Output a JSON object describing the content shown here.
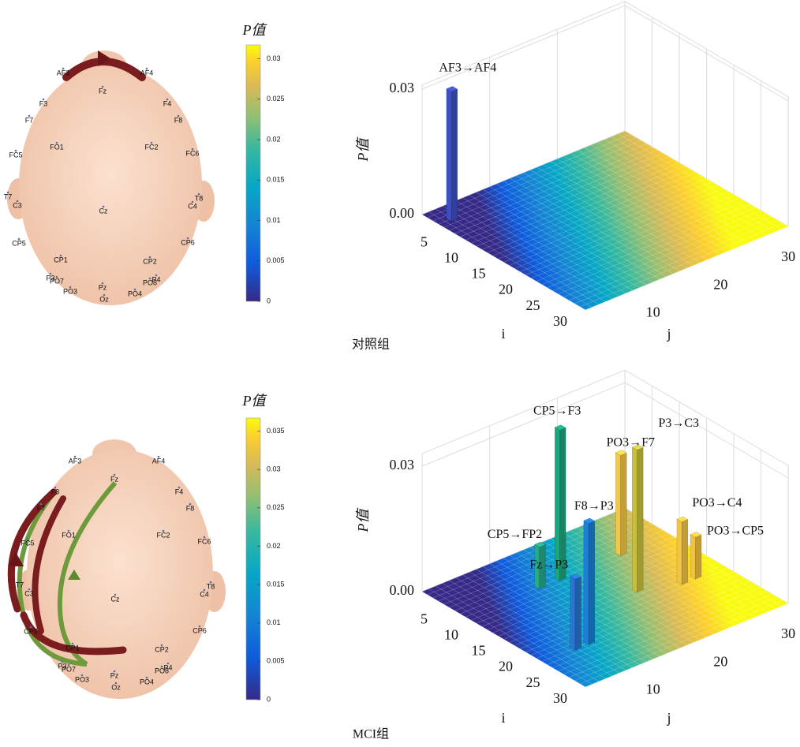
{
  "chart_data": [
    {
      "type": "bar3d",
      "caption": "对照组",
      "ilabel": "i",
      "jlabel": "j",
      "zlabel": "P值",
      "ilim": [
        0,
        30
      ],
      "iticks": [
        5,
        10,
        15,
        20,
        25,
        30
      ],
      "jlim": [
        0,
        30
      ],
      "jticks": [
        10,
        20,
        30
      ],
      "zlim": [
        0,
        0.031
      ],
      "zticks": [
        {
          "value": 0,
          "label": "0.00"
        },
        {
          "value": 0.03,
          "label": "0.03"
        }
      ],
      "bars": [
        {
          "label": "AF3→AF4",
          "i": 3,
          "j": 2,
          "value": 0.031,
          "color": "#3d4fc4"
        }
      ],
      "colorbar": {
        "title": "P值",
        "clim": [
          0,
          0.0317
        ],
        "ticks": [
          0,
          0.005,
          0.01,
          0.015,
          0.02,
          0.025,
          0.03
        ]
      }
    },
    {
      "type": "bar3d",
      "caption": "MCI组",
      "ilabel": "i",
      "jlabel": "j",
      "zlabel": "P值",
      "ilim": [
        0,
        30
      ],
      "iticks": [
        5,
        10,
        15,
        20,
        25,
        30
      ],
      "jlim": [
        0,
        30
      ],
      "jticks": [
        10,
        20,
        30
      ],
      "zlim": [
        0,
        0.033
      ],
      "zticks": [
        {
          "value": 0,
          "label": "0.00"
        },
        {
          "value": 0.03,
          "label": "0.03"
        }
      ],
      "bars": [
        {
          "label": "CP5→F3",
          "i": 8,
          "j": 14,
          "value": 0.036,
          "color": "#1ea57e"
        },
        {
          "label": "CP5→FP2",
          "i": 8,
          "j": 11,
          "value": 0.01,
          "color": "#27a98a"
        },
        {
          "label": "Fz→P3",
          "i": 22,
          "j": 5,
          "value": 0.017,
          "color": "#2a74d2"
        },
        {
          "label": "F8→P3",
          "i": 22,
          "j": 7,
          "value": 0.029,
          "color": "#1c7fd8"
        },
        {
          "label": "PO3→F7",
          "i": 8,
          "j": 23,
          "value": 0.024,
          "color": "#f4c744"
        },
        {
          "label": "P3→C3",
          "i": 16,
          "j": 19,
          "value": 0.034,
          "color": "#c9bf3e"
        },
        {
          "label": "PO3→C4",
          "i": 18,
          "j": 24,
          "value": 0.015,
          "color": "#f2c443"
        },
        {
          "label": "PO3→CP5",
          "i": 18,
          "j": 26,
          "value": 0.01,
          "color": "#f0c241"
        }
      ],
      "colorbar": {
        "title": "P值",
        "clim": [
          0,
          0.0367
        ],
        "ticks": [
          0,
          0.005,
          0.01,
          0.015,
          0.02,
          0.025,
          0.03,
          0.035
        ]
      }
    }
  ],
  "heads": [
    {
      "electrodes": [
        "AF3",
        "AF4",
        "Fz",
        "F3",
        "F4",
        "F7",
        "F8",
        "FO1",
        "FC2",
        "FC5",
        "FC6",
        "T7",
        "T8",
        "C3",
        "Cz",
        "C4",
        "CP5",
        "CP6",
        "CP1",
        "CP2",
        "P3",
        "P4",
        "PO7",
        "PO8",
        "PO3",
        "PO4",
        "Pz",
        "Oz"
      ]
    },
    {
      "electrodes": [
        "AF3",
        "AF4",
        "Fz",
        "F3",
        "F4",
        "F7",
        "F8",
        "FO1",
        "FC2",
        "FC5",
        "FC6",
        "T7",
        "T8",
        "C3",
        "Cz",
        "C4",
        "CP5",
        "CP6",
        "CP1",
        "CP2",
        "P3",
        "P4",
        "PO7",
        "PO8",
        "PO3",
        "PO4",
        "Pz",
        "Oz"
      ]
    }
  ]
}
